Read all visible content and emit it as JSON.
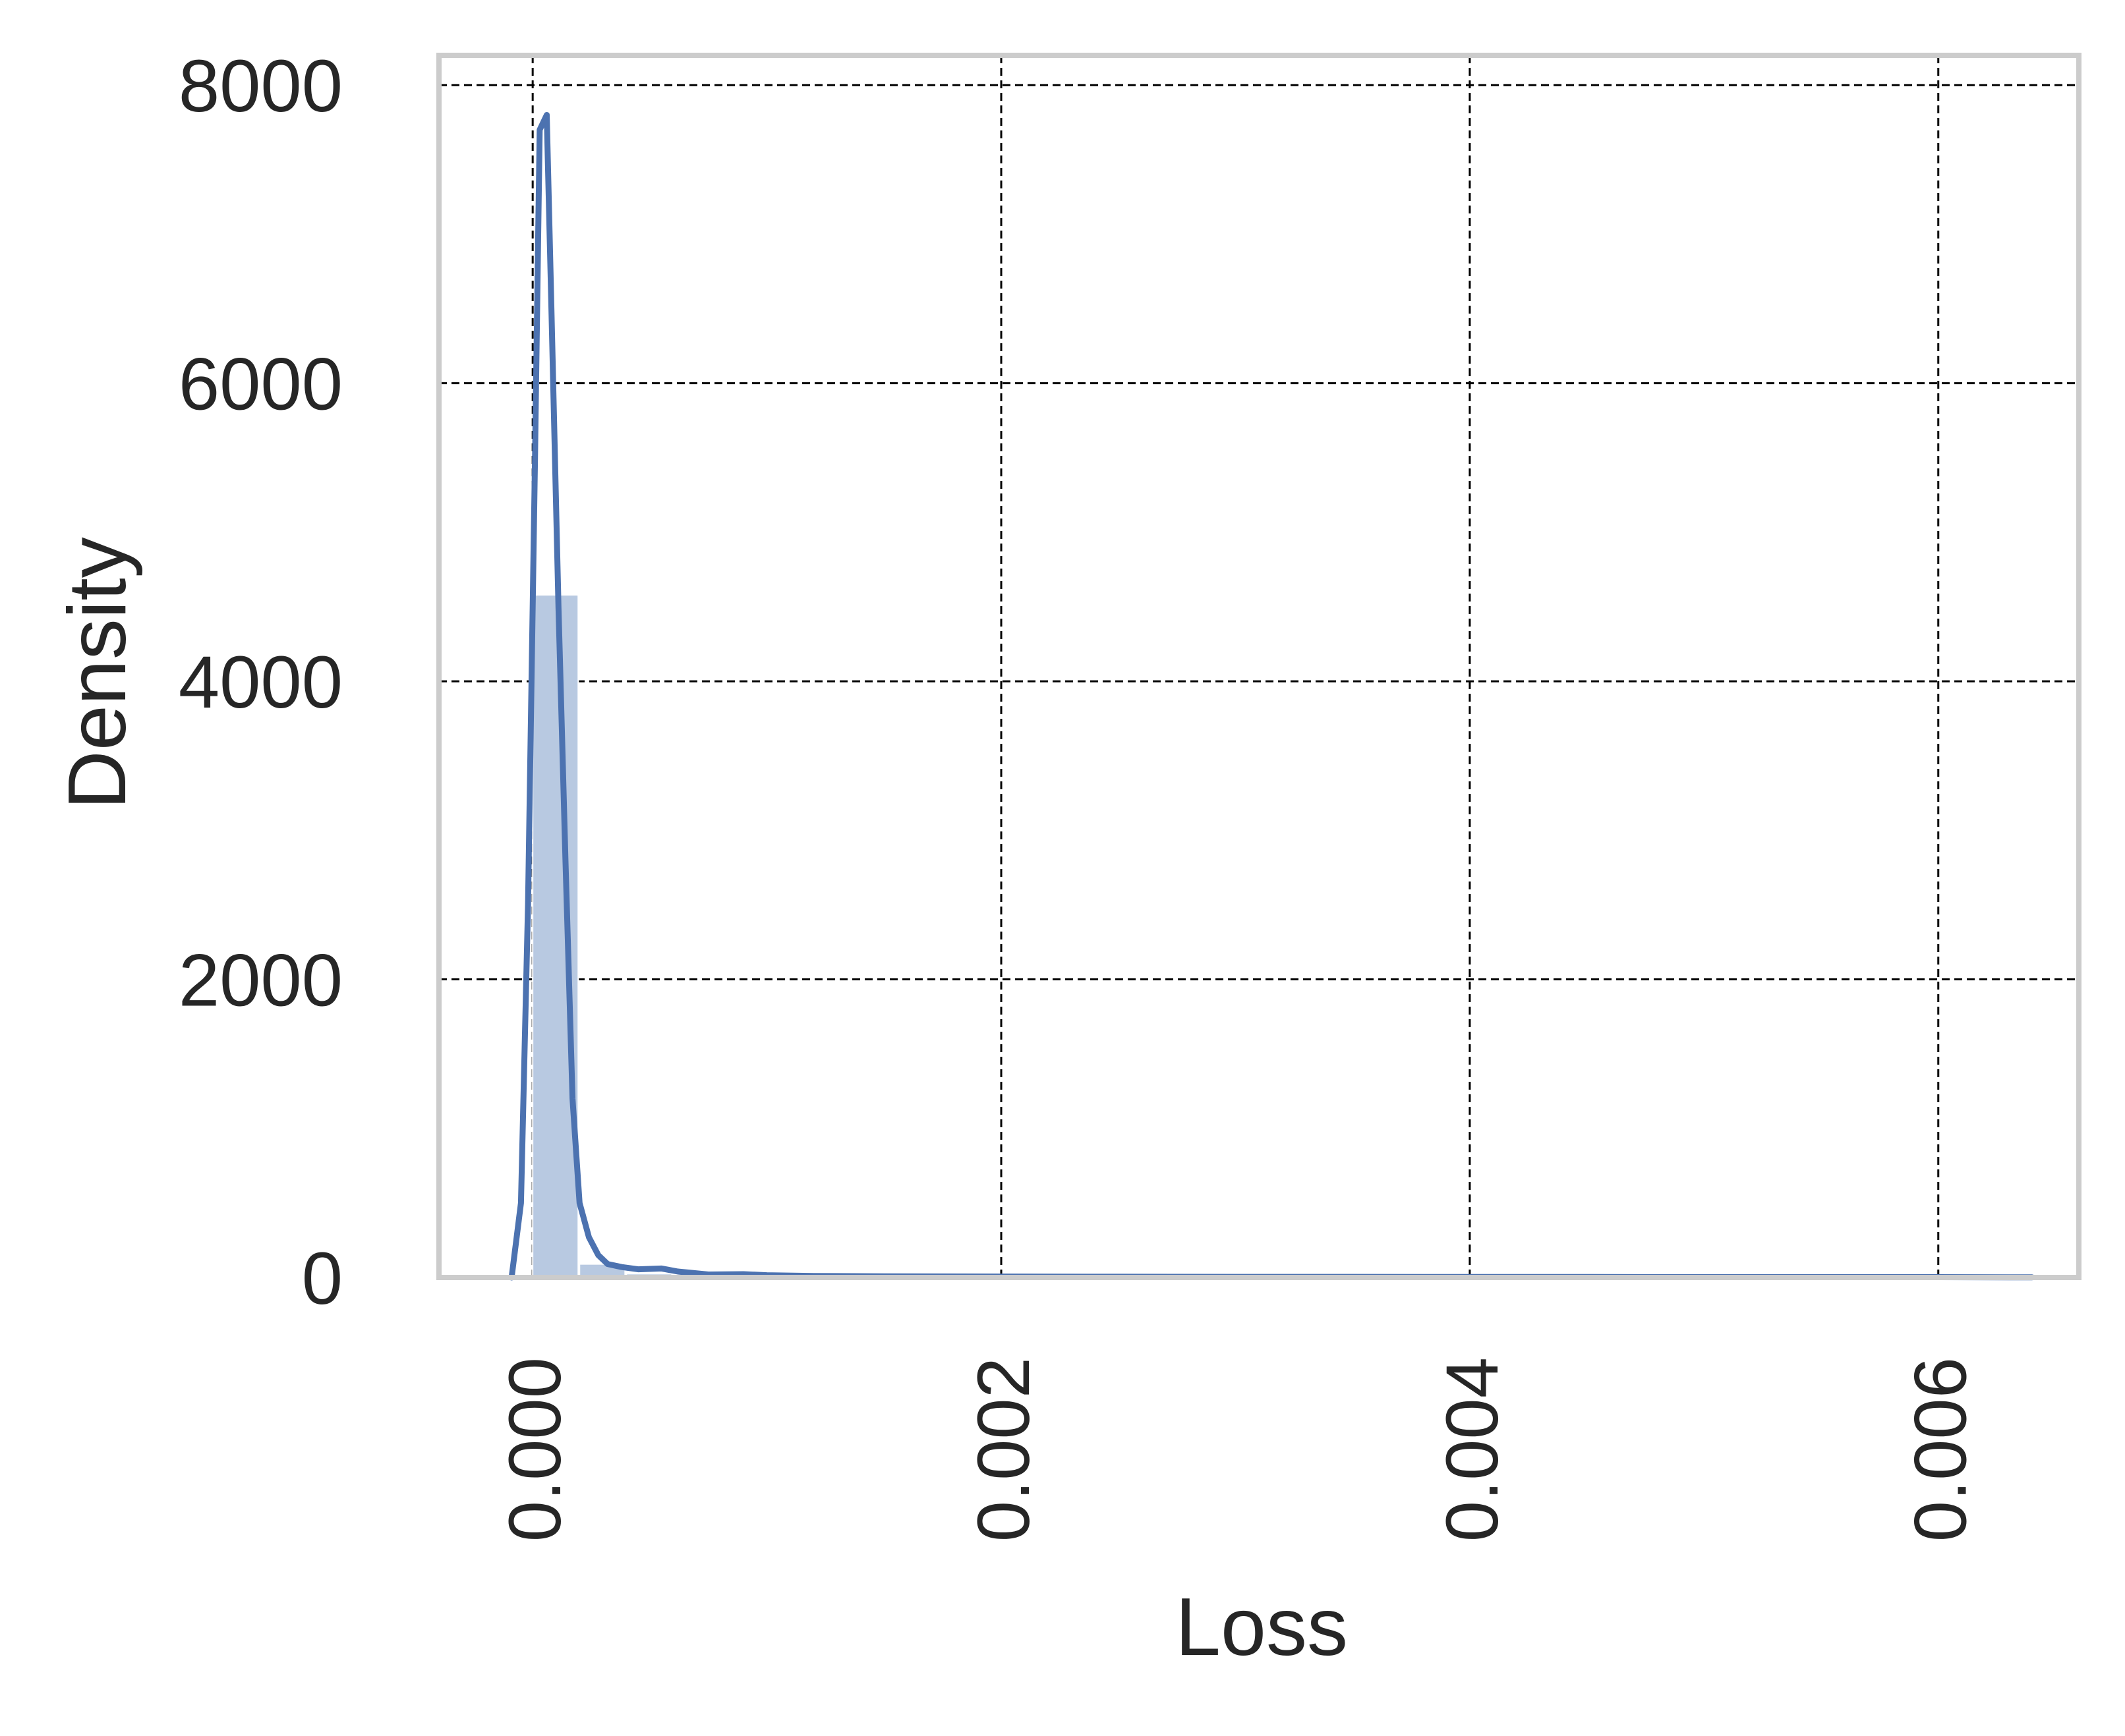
{
  "chart_data": {
    "type": "histogram",
    "title": "",
    "xlabel": "Loss",
    "ylabel": "Density",
    "xlim": [
      -0.0004,
      0.0066
    ],
    "ylim": [
      0,
      8200
    ],
    "x_ticks": [
      0.0,
      0.002,
      0.004,
      0.006
    ],
    "x_tick_labels": [
      "0.000",
      "0.002",
      "0.004",
      "0.006"
    ],
    "x_tick_rotation": 90,
    "y_ticks": [
      0,
      2000,
      4000,
      6000,
      8000
    ],
    "y_tick_labels": [
      "0",
      "2000",
      "4000",
      "6000",
      "8000"
    ],
    "grid": true,
    "legend": "none",
    "series": [
      {
        "kind": "histogram",
        "bins": [
          {
            "x0": 0.0,
            "x1": 0.0002,
            "density": 4580
          },
          {
            "x0": 0.0002,
            "x1": 0.0004,
            "density": 90
          },
          {
            "x0": 0.0004,
            "x1": 0.0006,
            "density": 25
          },
          {
            "x0": 0.0006,
            "x1": 0.0008,
            "density": 15
          },
          {
            "x0": 0.0008,
            "x1": 0.001,
            "density": 10
          },
          {
            "x0": 0.001,
            "x1": 0.0012,
            "density": 8
          },
          {
            "x0": 0.0012,
            "x1": 0.0014,
            "density": 6
          },
          {
            "x0": 0.0014,
            "x1": 0.0016,
            "density": 5
          },
          {
            "x0": 0.0016,
            "x1": 0.0018,
            "density": 4
          },
          {
            "x0": 0.0018,
            "x1": 0.002,
            "density": 4
          },
          {
            "x0": 0.002,
            "x1": 0.0022,
            "density": 3
          },
          {
            "x0": 0.0022,
            "x1": 0.0024,
            "density": 3
          },
          {
            "x0": 0.0024,
            "x1": 0.0026,
            "density": 3
          },
          {
            "x0": 0.0026,
            "x1": 0.0028,
            "density": 2
          },
          {
            "x0": 0.0028,
            "x1": 0.003,
            "density": 2
          },
          {
            "x0": 0.003,
            "x1": 0.0032,
            "density": 2
          },
          {
            "x0": 0.0032,
            "x1": 0.0034,
            "density": 2
          },
          {
            "x0": 0.0034,
            "x1": 0.0036,
            "density": 2
          },
          {
            "x0": 0.0036,
            "x1": 0.0038,
            "density": 2
          },
          {
            "x0": 0.0038,
            "x1": 0.004,
            "density": 2
          },
          {
            "x0": 0.004,
            "x1": 0.0042,
            "density": 1
          },
          {
            "x0": 0.0042,
            "x1": 0.0044,
            "density": 1
          },
          {
            "x0": 0.0044,
            "x1": 0.0046,
            "density": 1
          },
          {
            "x0": 0.0046,
            "x1": 0.0048,
            "density": 1
          },
          {
            "x0": 0.0048,
            "x1": 0.005,
            "density": 1
          },
          {
            "x0": 0.005,
            "x1": 0.0052,
            "density": 1
          },
          {
            "x0": 0.0052,
            "x1": 0.0054,
            "density": 1
          },
          {
            "x0": 0.0054,
            "x1": 0.0056,
            "density": 1
          },
          {
            "x0": 0.0056,
            "x1": 0.0058,
            "density": 1
          },
          {
            "x0": 0.0058,
            "x1": 0.006,
            "density": 1
          },
          {
            "x0": 0.006,
            "x1": 0.0062,
            "density": 1
          },
          {
            "x0": 0.0062,
            "x1": 0.0064,
            "density": 1
          }
        ]
      },
      {
        "kind": "kde",
        "points": [
          [
            -9e-05,
            0
          ],
          [
            -5e-05,
            500
          ],
          [
            -2e-05,
            2500
          ],
          [
            1e-05,
            5500
          ],
          [
            3e-05,
            7700
          ],
          [
            6e-05,
            7800
          ],
          [
            8e-05,
            6500
          ],
          [
            0.00011,
            4500
          ],
          [
            0.00014,
            2800
          ],
          [
            0.00017,
            1200
          ],
          [
            0.0002,
            500
          ],
          [
            0.00024,
            270
          ],
          [
            0.00028,
            150
          ],
          [
            0.00032,
            90
          ],
          [
            0.00038,
            70
          ],
          [
            0.00045,
            55
          ],
          [
            0.00055,
            60
          ],
          [
            0.00062,
            40
          ],
          [
            0.00075,
            20
          ],
          [
            0.0009,
            22
          ],
          [
            0.001,
            15
          ],
          [
            0.0012,
            10
          ],
          [
            0.0015,
            8
          ],
          [
            0.002,
            6
          ],
          [
            0.0025,
            5
          ],
          [
            0.003,
            4
          ],
          [
            0.0035,
            4
          ],
          [
            0.004,
            3
          ],
          [
            0.0045,
            3
          ],
          [
            0.005,
            2
          ],
          [
            0.0055,
            2
          ],
          [
            0.006,
            2
          ],
          [
            0.0064,
            1
          ]
        ]
      }
    ],
    "colors": {
      "kde": "#4c72b0",
      "histogram": "#b8c9e1",
      "frame": "#cccccc",
      "grid": "#000000",
      "text": "#262626"
    }
  }
}
